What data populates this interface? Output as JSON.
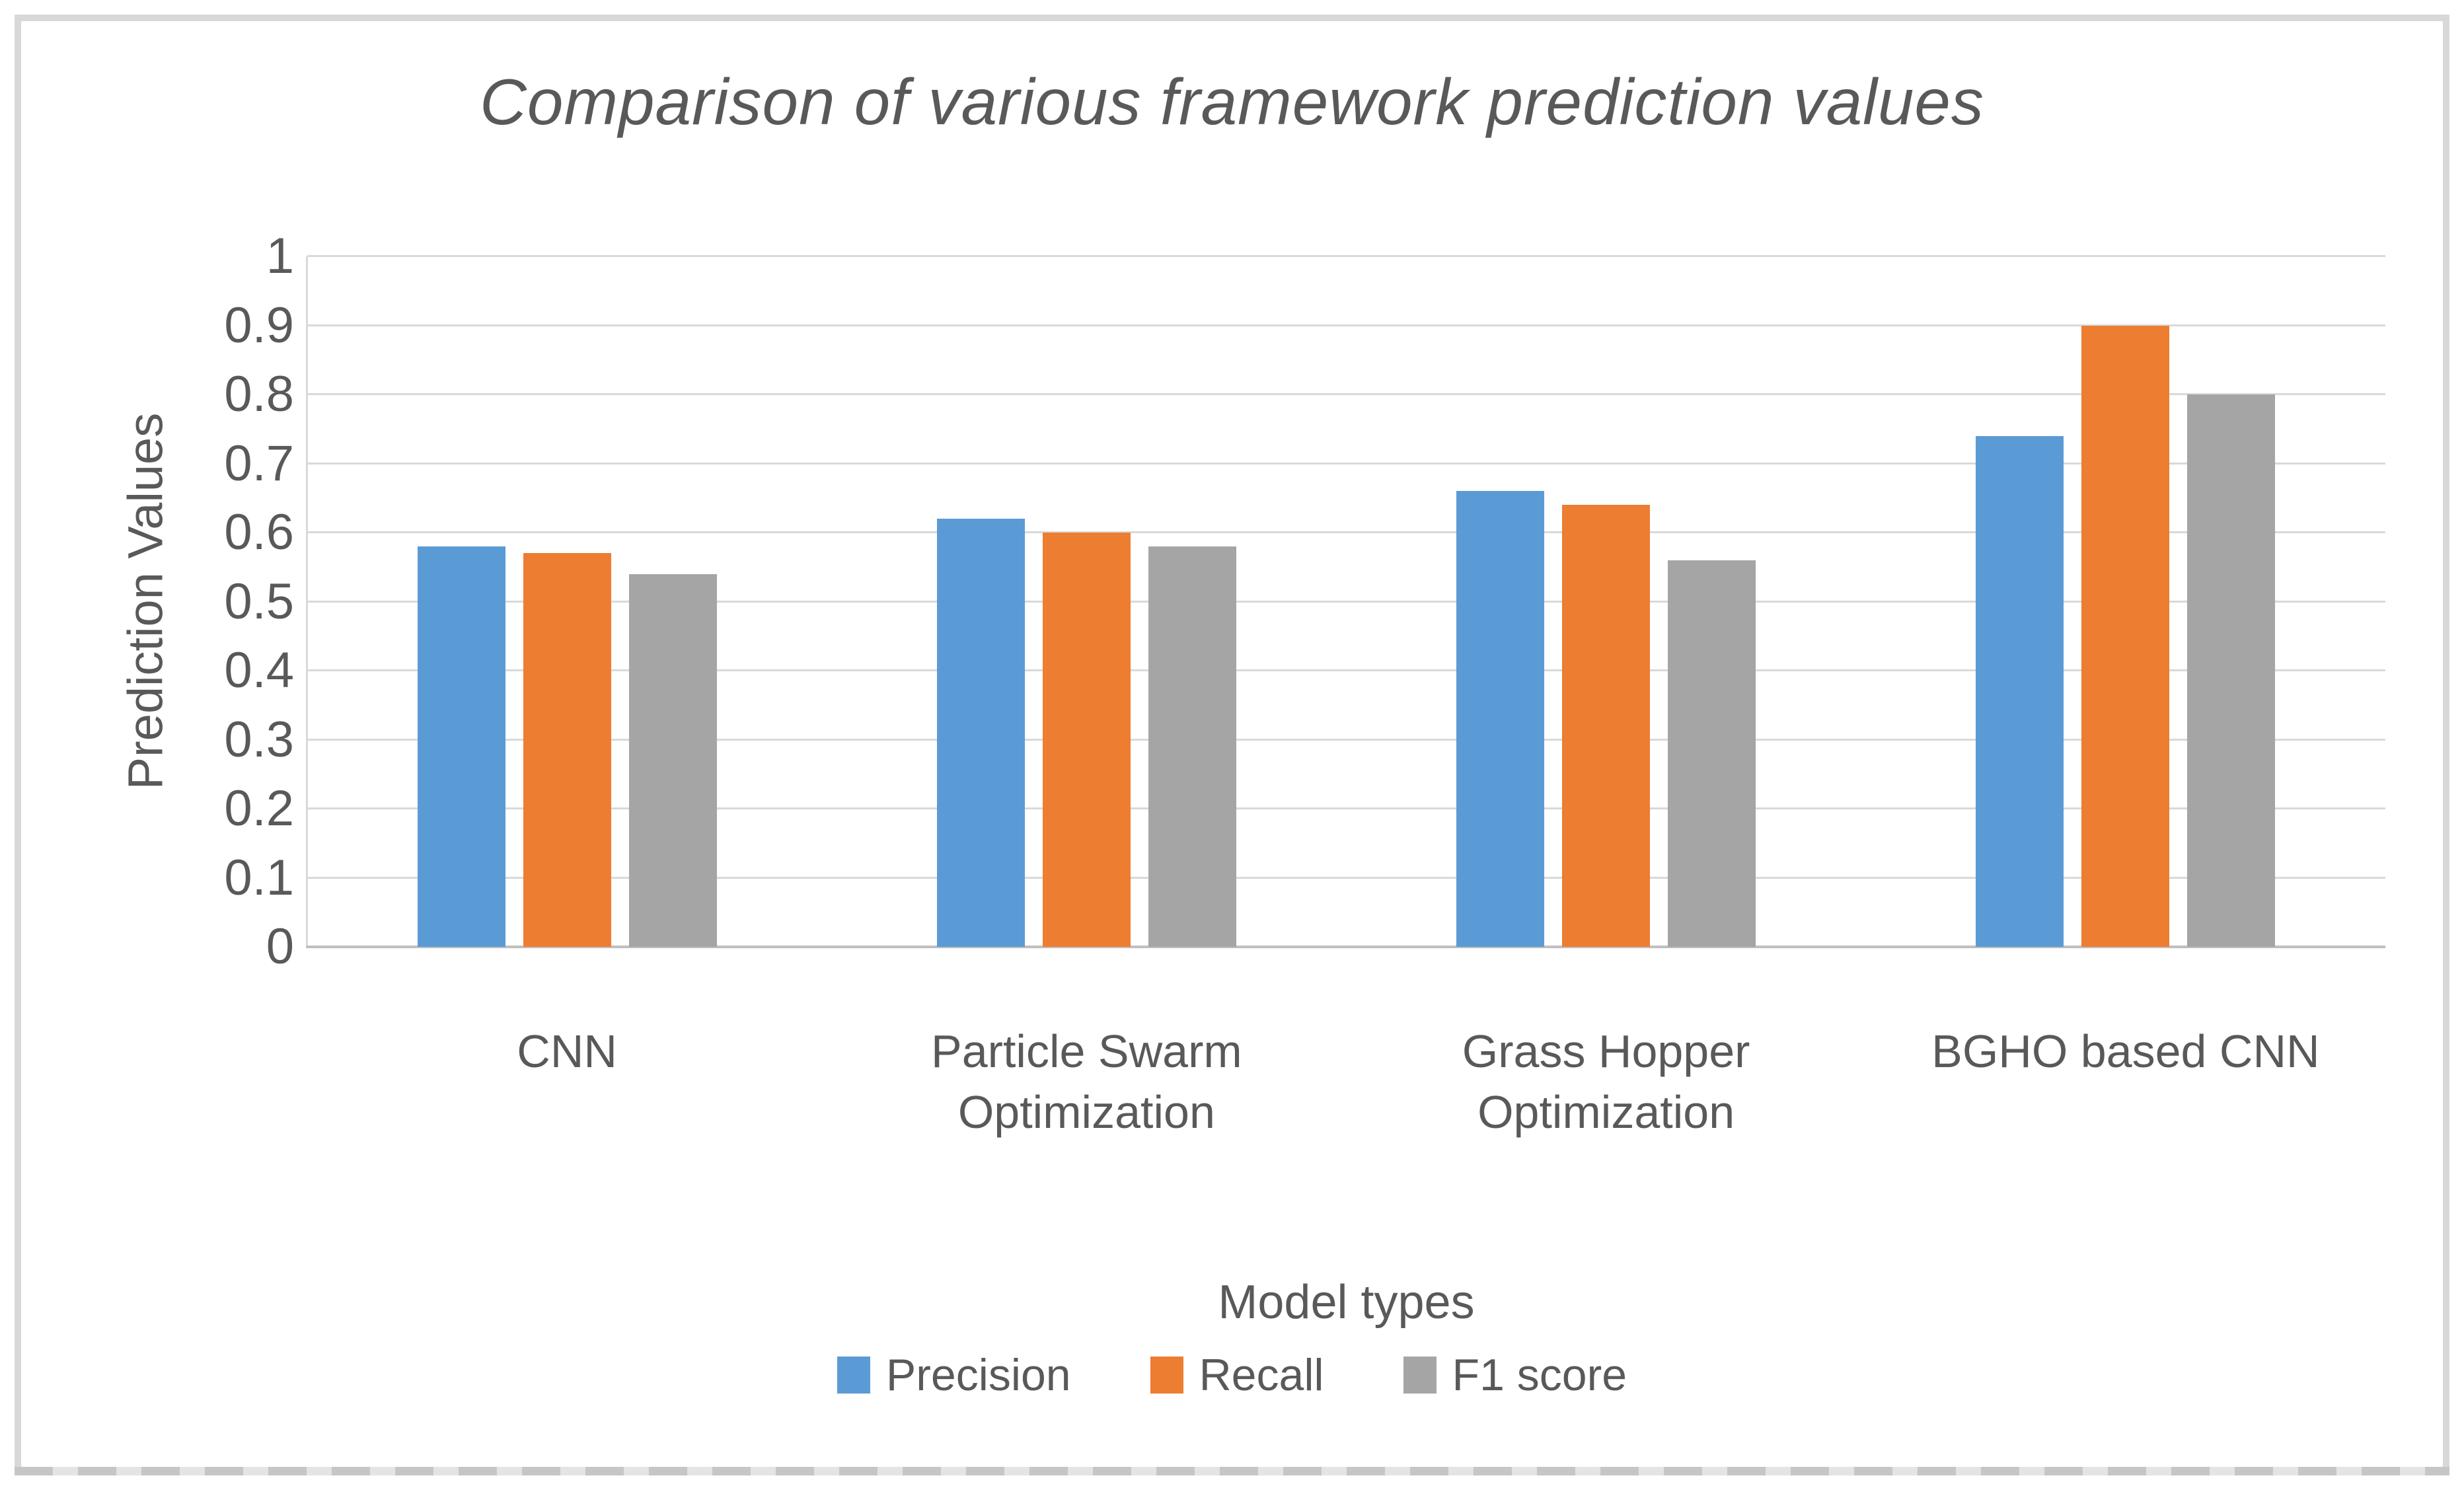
{
  "figure": {
    "frame_color": "#d8d8d8",
    "background": "#ffffff",
    "text_color": "#595959"
  },
  "chart_data": {
    "type": "bar",
    "title": "Comparison of various framework prediction values",
    "xlabel": "Model types",
    "ylabel": "Prediction Values",
    "ylim": [
      0,
      1
    ],
    "ytick_step": 0.1,
    "ytick_labels": [
      "0",
      "0.1",
      "0.2",
      "0.3",
      "0.4",
      "0.5",
      "0.6",
      "0.7",
      "0.8",
      "0.9",
      "1"
    ],
    "grid": true,
    "legend_position": "bottom",
    "categories": [
      "CNN",
      "Particle Swarm Optimization",
      "Grass Hopper Optimization",
      "BGHO based CNN"
    ],
    "series": [
      {
        "name": "Precision",
        "color": "#5B9BD5",
        "values": [
          0.58,
          0.62,
          0.66,
          0.74
        ]
      },
      {
        "name": "Recall",
        "color": "#ED7D31",
        "values": [
          0.57,
          0.6,
          0.64,
          0.9
        ]
      },
      {
        "name": "F1 score",
        "color": "#A5A5A5",
        "values": [
          0.54,
          0.58,
          0.56,
          0.8
        ]
      }
    ]
  }
}
